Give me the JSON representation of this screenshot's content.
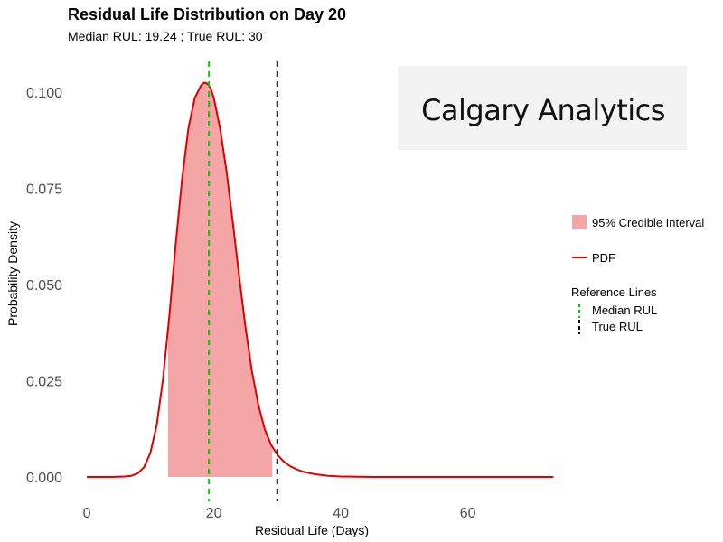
{
  "chart_data": {
    "type": "area",
    "title": "Residual Life Distribution on Day 20",
    "subtitle": "Median RUL: 19.24 ; True RUL: 30",
    "xlabel": "Residual Life (Days)",
    "ylabel": "Probability Density",
    "xlim": [
      -3,
      76
    ],
    "ylim": [
      -0.004,
      0.108
    ],
    "x_ticks": [
      0,
      20,
      40,
      60
    ],
    "y_ticks": [
      0.0,
      0.025,
      0.05,
      0.075,
      0.1
    ],
    "y_tick_labels": [
      "0.000",
      "0.025",
      "0.050",
      "0.075",
      "0.100"
    ],
    "grid": false,
    "series": [
      {
        "name": "PDF",
        "color": "#e00000",
        "x": [
          0,
          4,
          6,
          7,
          8,
          9,
          10,
          11,
          12,
          13,
          14,
          15,
          16,
          17,
          18,
          18.5,
          19,
          19.5,
          20,
          21,
          22,
          23,
          24,
          25,
          26,
          27,
          28,
          29,
          30,
          31,
          32,
          33,
          34,
          35,
          36,
          38,
          40,
          45,
          50,
          60,
          70,
          73.5
        ],
        "y": [
          0.0,
          0.0,
          0.0001,
          0.0003,
          0.0009,
          0.0025,
          0.0062,
          0.0135,
          0.0255,
          0.042,
          0.0605,
          0.0775,
          0.0907,
          0.0985,
          0.1018,
          0.1025,
          0.1022,
          0.101,
          0.0985,
          0.0905,
          0.0795,
          0.066,
          0.052,
          0.0388,
          0.0275,
          0.0188,
          0.0125,
          0.0084,
          0.0058,
          0.004,
          0.0028,
          0.002,
          0.0014,
          0.001,
          0.0007,
          0.0003,
          0.0001,
          0.0,
          0.0,
          0.0,
          0.0,
          0.0
        ]
      }
    ],
    "credible_interval": {
      "name": "95% Credible Interval",
      "lower": 12.8,
      "upper": 29.2,
      "color": "#f4a6a6"
    },
    "reference_lines": {
      "title": "Reference Lines",
      "lines": [
        {
          "name": "Median RUL",
          "x": 19.24,
          "color": "#00cc00"
        },
        {
          "name": "True RUL",
          "x": 30,
          "color": "#000000"
        }
      ]
    },
    "legend_placement": "right"
  },
  "logo": {
    "text": "Calgary Analytics"
  }
}
